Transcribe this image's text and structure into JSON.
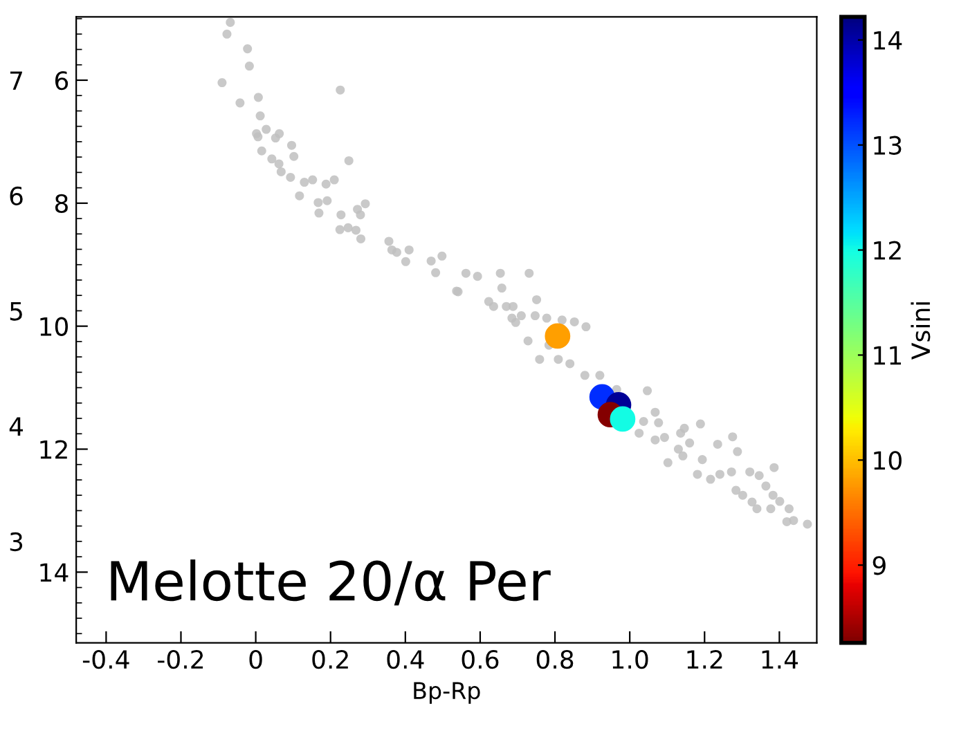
{
  "chart_data": {
    "type": "scatter",
    "xlabel": "Bp-Rp",
    "clabel": "Vsini",
    "annotations": [
      "Melotte 20/α Per"
    ],
    "xlim": [
      -0.48,
      1.5
    ],
    "xticks": [
      -0.4,
      -0.2,
      0,
      0.2,
      0.4,
      0.6,
      0.8,
      {
        "value": 1,
        "label": "1.0"
      },
      1.2,
      1.4
    ],
    "ylim": [
      15.15,
      4.97
    ],
    "yticks": [
      6,
      8,
      10,
      12,
      14
    ],
    "y2lim": [
      2.12,
      7.55
    ],
    "y2ticks": [
      7,
      6,
      5,
      4,
      3
    ],
    "clim": [
      8.26,
      14.22
    ],
    "cticks": [
      9,
      10,
      11,
      12,
      13,
      14
    ],
    "grid": false,
    "legend": false,
    "marker": "circle",
    "series": [
      {
        "color": "#c0c0c0",
        "x": [
          -0.068,
          -0.077,
          -0.022,
          -0.017,
          -0.09,
          0.226,
          -0.042,
          0.007,
          0.012,
          0.002,
          0.006,
          0.028,
          0.053,
          0.063,
          0.016,
          0.043,
          0.062,
          0.068,
          0.093,
          0.096,
          0.102,
          0.13,
          0.152,
          0.117,
          0.167,
          0.169,
          0.191,
          0.188,
          0.21,
          0.249,
          0.228,
          0.225,
          0.247,
          0.272,
          0.28,
          0.293,
          0.268,
          0.281,
          0.356,
          0.364,
          0.377,
          0.41,
          0.401,
          0.469,
          0.481,
          0.498,
          0.537,
          0.562,
          0.593,
          0.654,
          0.731,
          0.541,
          0.658,
          0.623,
          0.636,
          0.67,
          0.688,
          0.685,
          0.71,
          0.695,
          0.751,
          0.747,
          0.778,
          0.819,
          0.852,
          0.883,
          0.728,
          0.784,
          0.759,
          0.809,
          0.84,
          0.88,
          0.92,
          0.965,
          1.047,
          1.068,
          1.037,
          1.077,
          1.025,
          1.068,
          1.093,
          1.102,
          1.136,
          1.146,
          1.16,
          1.189,
          1.194,
          1.235,
          1.275,
          1.288,
          1.181,
          1.216,
          1.241,
          1.272,
          1.321,
          1.386,
          1.346,
          1.284,
          1.302,
          1.327,
          1.364,
          1.383,
          1.401,
          1.34,
          1.377,
          1.426,
          1.438,
          1.475,
          1.42,
          1.142,
          1.13
        ],
        "values": [
          5.06,
          5.25,
          5.49,
          5.77,
          6.04,
          6.16,
          6.37,
          6.28,
          6.58,
          6.87,
          6.92,
          6.8,
          6.94,
          6.87,
          7.15,
          7.28,
          7.36,
          7.49,
          7.58,
          7.06,
          7.24,
          7.66,
          7.62,
          7.88,
          7.99,
          8.16,
          7.96,
          7.69,
          7.62,
          7.31,
          8.19,
          8.43,
          8.4,
          8.1,
          8.19,
          8.01,
          8.44,
          8.58,
          8.62,
          8.76,
          8.8,
          8.76,
          8.95,
          8.94,
          9.13,
          8.86,
          9.43,
          9.14,
          9.19,
          9.14,
          9.14,
          9.44,
          9.38,
          9.6,
          9.68,
          9.68,
          9.68,
          9.87,
          9.83,
          9.94,
          9.57,
          9.83,
          9.87,
          9.9,
          9.93,
          10.01,
          10.24,
          10.31,
          10.54,
          10.54,
          10.61,
          10.8,
          10.8,
          11.03,
          11.05,
          11.4,
          11.55,
          11.57,
          11.74,
          11.85,
          11.81,
          12.22,
          11.74,
          11.66,
          11.9,
          11.59,
          12.17,
          11.92,
          11.8,
          12.04,
          12.41,
          12.49,
          12.41,
          12.37,
          12.37,
          12.3,
          12.43,
          12.67,
          12.75,
          12.86,
          12.6,
          12.75,
          12.85,
          12.97,
          12.97,
          12.97,
          13.16,
          13.22,
          13.18,
          12.11,
          12.0
        ]
      },
      {
        "x": [
          0.807,
          0.926,
          0.97,
          0.948,
          0.981
        ],
        "values": [
          10.16,
          11.15,
          11.28,
          11.44,
          11.51
        ],
        "cvalues": [
          9.8,
          13.2,
          14.1,
          8.3,
          12.0
        ],
        "colors": [
          "#ff9e00",
          "#002eff",
          "#000097",
          "#870000",
          "#12fde6"
        ]
      }
    ]
  }
}
